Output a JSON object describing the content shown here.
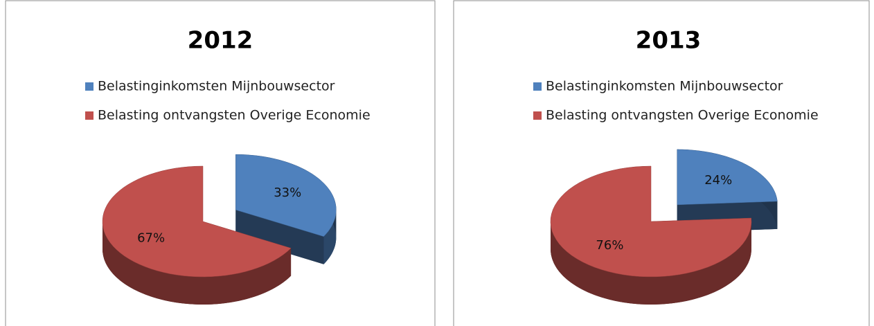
{
  "chart_data": [
    {
      "type": "pie",
      "title": "2012",
      "categories": [
        "Belastinginkomsten  Mijnbouwsector",
        "Belasting ontvangsten Overige Economie"
      ],
      "values": [
        33,
        67
      ],
      "value_labels": [
        "33%",
        "67%"
      ],
      "colors": [
        "#4f81bd",
        "#c0504d"
      ]
    },
    {
      "type": "pie",
      "title": "2013",
      "categories": [
        "Belastinginkomsten  Mijnbouwsector",
        "Belasting ontvangsten Overige Economie"
      ],
      "values": [
        24,
        76
      ],
      "value_labels": [
        "24%",
        "76%"
      ],
      "colors": [
        "#4f81bd",
        "#c0504d"
      ]
    }
  ]
}
